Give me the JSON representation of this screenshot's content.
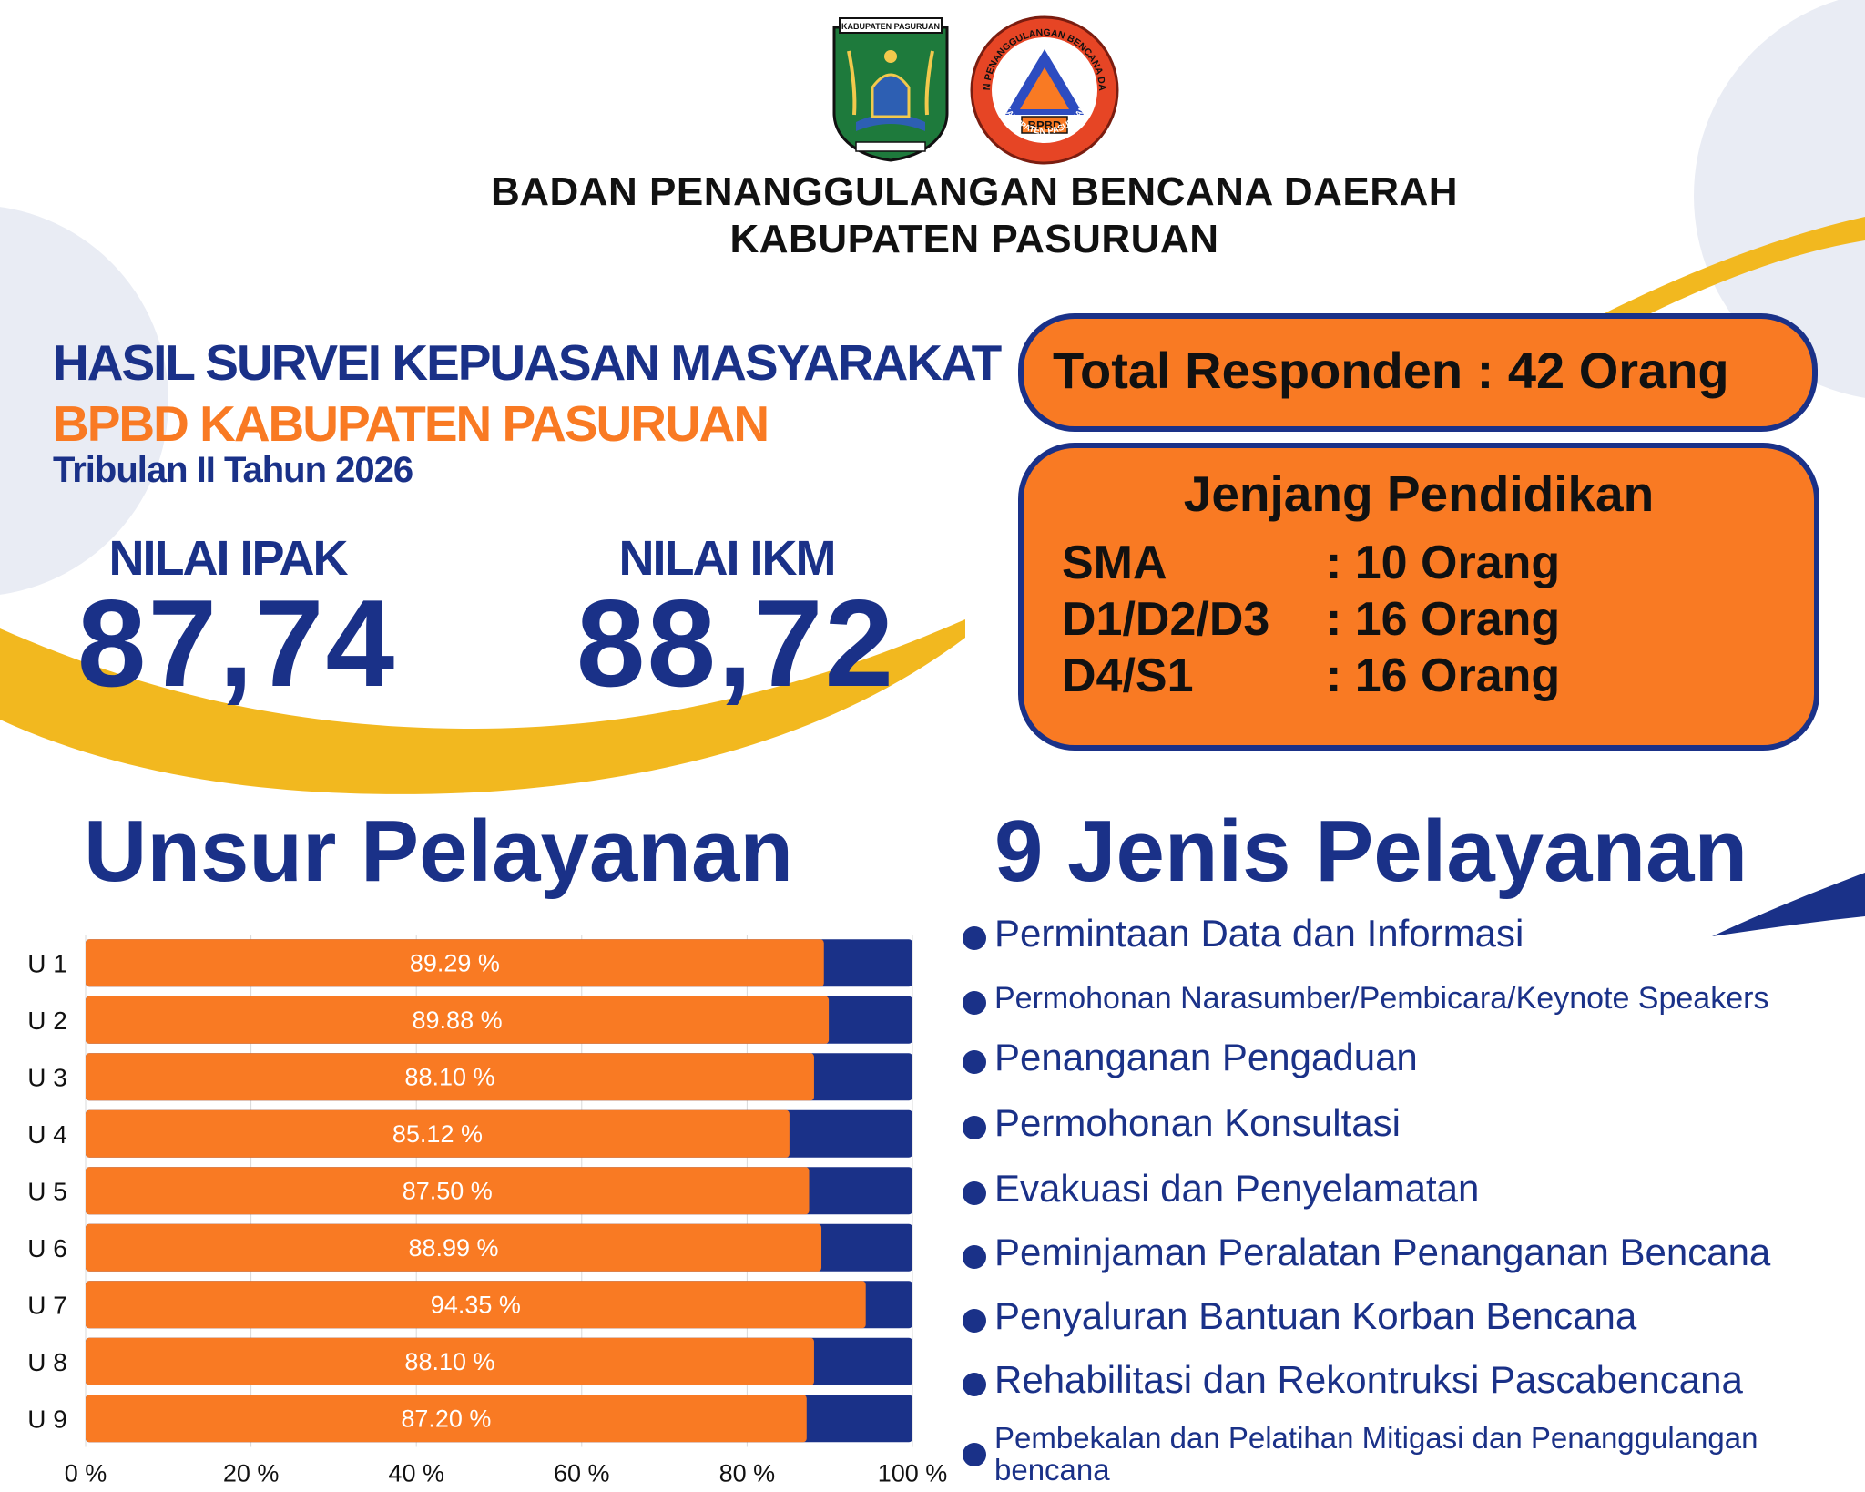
{
  "header": {
    "org_line_1": "BADAN PENANGGULANGAN BENCANA DAERAH",
    "org_line_2": "KABUPATEN PASURUAN",
    "left_logo_caption": "KABUPATEN PASURUAN",
    "right_logo_ring_text": "BADAN PENANGGULANGAN BENCANA DAERAH",
    "right_logo_bottom_text": "KABUPATEN PASURUAN",
    "right_logo_badge": "BPBD"
  },
  "survey": {
    "title": "HASIL SURVEI KEPUASAN MASYARAKAT",
    "subtitle": "BPBD KABUPATEN PASURUAN",
    "period": "Tribulan II Tahun 2026"
  },
  "scores": {
    "ipak_label": "NILAI IPAK",
    "ipak_value": "87,74",
    "ikm_label": "NILAI IKM",
    "ikm_value": "88,72"
  },
  "respondents": {
    "text": "Total Responden : 42 Orang"
  },
  "education": {
    "title": "Jenjang Pendidikan",
    "rows": [
      {
        "level": "SMA",
        "count": ": 10 Orang"
      },
      {
        "level": "D1/D2/D3",
        "count": ": 16 Orang"
      },
      {
        "level": "D4/S1",
        "count": ": 16 Orang"
      }
    ]
  },
  "unsur_title": "Unsur Pelayanan",
  "jenis_title": "9 Jenis Pelayanan",
  "services": [
    "Permintaan Data dan Informasi",
    "Permohonan Narasumber/Pembicara/Keynote Speakers",
    "Penanganan Pengaduan",
    "Permohonan Konsultasi",
    "Evakuasi dan Penyelamatan",
    "Peminjaman Peralatan Penanganan Bencana",
    "Penyaluran Bantuan Korban Bencana",
    "Rehabilitasi dan Rekontruksi Pascabencana",
    "Pembekalan dan Pelatihan Mitigasi dan Penanggulangan bencana"
  ],
  "colors": {
    "navy": "#1a3188",
    "orange": "#f97a23",
    "yellow": "#f2b81f",
    "light_gray": "#e9ecf4"
  },
  "chart_data": {
    "type": "bar",
    "orientation": "horizontal",
    "stacked_to": 100,
    "categories": [
      "U 1",
      "U 2",
      "U 3",
      "U 4",
      "U 5",
      "U 6",
      "U 7",
      "U 8",
      "U 9"
    ],
    "values": [
      89.29,
      89.88,
      88.1,
      85.12,
      87.5,
      88.99,
      94.35,
      88.1,
      87.2
    ],
    "data_labels": [
      "89.29 %",
      "89.88 %",
      "88.10 %",
      "85.12 %",
      "87.50 %",
      "88.99 %",
      "94.35 %",
      "88.10 %",
      "87.20 %"
    ],
    "x_ticks": [
      "0 %",
      "20 %",
      "40 %",
      "60 %",
      "80 %",
      "100 %"
    ],
    "xlim": [
      0,
      100
    ],
    "grid": true
  }
}
